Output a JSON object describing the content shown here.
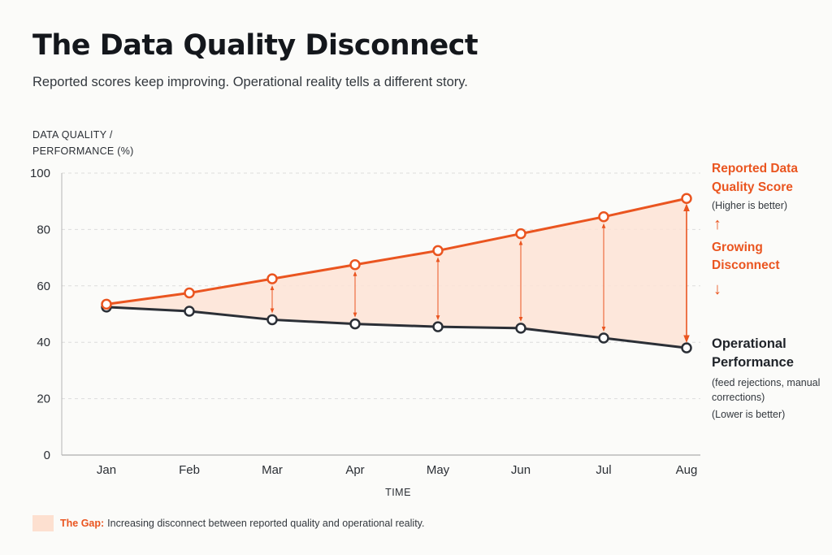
{
  "title": "The Data Quality Disconnect",
  "subtitle": "Reported scores keep improving. Operational reality tells a different story.",
  "colors": {
    "reported": "#ea5520",
    "operational": "#2b2f36",
    "gap_fill": "#fde3d6",
    "grid": "#dcdcdc"
  },
  "chart_data": {
    "type": "line",
    "ylabel": "DATA QUALITY / PERFORMANCE (%)",
    "xlabel": "TIME",
    "ylim": [
      0,
      100
    ],
    "yticks": [
      "0",
      "20",
      "40",
      "60",
      "80",
      "100"
    ],
    "grid": true,
    "categories": [
      "Jan",
      "Feb",
      "Mar",
      "Apr",
      "May",
      "Jun",
      "Jul",
      "Aug"
    ],
    "series": [
      {
        "name": "Reported Data Quality Score",
        "values": [
          53.5,
          57.5,
          62.5,
          67.5,
          72.5,
          78.5,
          84.5,
          91
        ]
      },
      {
        "name": "Operational Performance",
        "values": [
          52.5,
          51,
          48,
          46.5,
          45.5,
          45,
          41.5,
          38
        ]
      }
    ]
  },
  "annotations": {
    "reported": {
      "label": "Reported Data Quality Score",
      "note": "(Higher is better)"
    },
    "gap": {
      "label": "Growing Disconnect",
      "up_arrow": "↑",
      "down_arrow": "↓"
    },
    "operational": {
      "label": "Operational Performance",
      "note": "(feed rejections, manual corrections)",
      "note2": "(Lower is better)"
    }
  },
  "legend": {
    "key": "The Gap:",
    "text": "Increasing disconnect between reported quality and operational reality."
  }
}
